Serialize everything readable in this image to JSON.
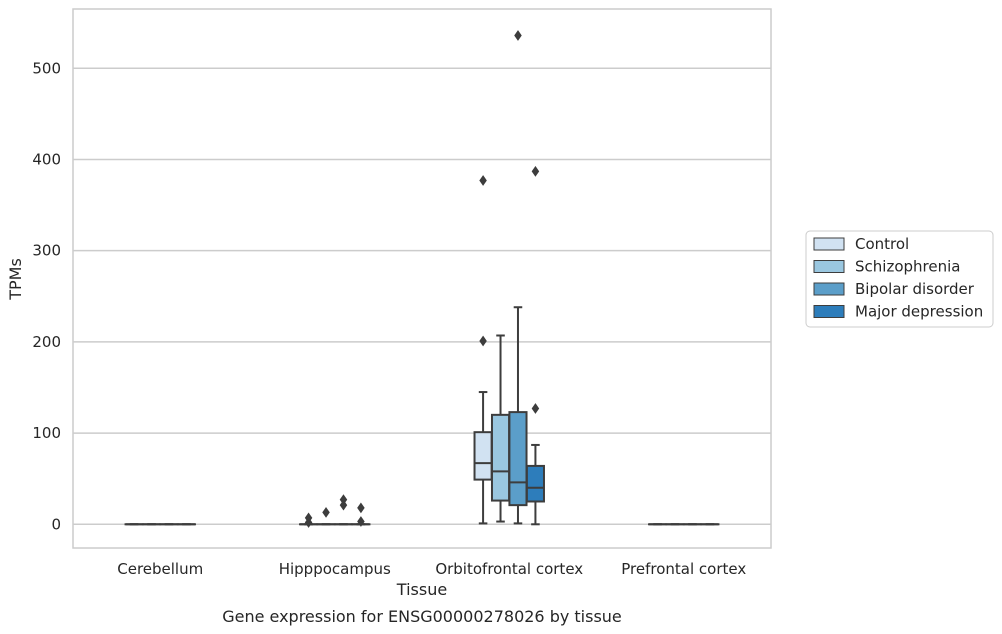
{
  "caption": "Gene expression for ENSG00000278026 by tissue",
  "chart_data": {
    "type": "boxplot",
    "xlabel": "Tissue",
    "ylabel": "TPMs",
    "ylim": [
      -26,
      565
    ],
    "yticks": [
      0,
      100,
      200,
      300,
      400,
      500
    ],
    "grid": "horizontal",
    "legend_position": "right",
    "categories": [
      "Cerebellum",
      "Hipppocampus",
      "Orbitofrontal cortex",
      "Prefrontal cortex"
    ],
    "series": [
      {
        "name": "Control",
        "color": "#d1e2f2",
        "boxes": [
          {
            "whisker_low": 0,
            "q1": 0,
            "median": 0,
            "q3": 0,
            "whisker_high": 0,
            "outliers": []
          },
          {
            "whisker_low": 0,
            "q1": 0,
            "median": 0,
            "q3": 0,
            "whisker_high": 0,
            "outliers": [
              2,
              7
            ]
          },
          {
            "whisker_low": 1,
            "q1": 49,
            "median": 67,
            "q3": 101,
            "whisker_high": 145,
            "outliers": [
              201,
              377
            ]
          },
          {
            "whisker_low": 0,
            "q1": 0,
            "median": 0,
            "q3": 0,
            "whisker_high": 0,
            "outliers": []
          }
        ]
      },
      {
        "name": "Schizophrenia",
        "color": "#9ac7e0",
        "boxes": [
          {
            "whisker_low": 0,
            "q1": 0,
            "median": 0,
            "q3": 0,
            "whisker_high": 0,
            "outliers": []
          },
          {
            "whisker_low": 0,
            "q1": 0,
            "median": 0,
            "q3": 0,
            "whisker_high": 0,
            "outliers": [
              13
            ]
          },
          {
            "whisker_low": 3,
            "q1": 26,
            "median": 58,
            "q3": 120,
            "whisker_high": 207,
            "outliers": []
          },
          {
            "whisker_low": 0,
            "q1": 0,
            "median": 0,
            "q3": 0,
            "whisker_high": 0,
            "outliers": []
          }
        ]
      },
      {
        "name": "Bipolar disorder",
        "color": "#5b9ec9",
        "boxes": [
          {
            "whisker_low": 0,
            "q1": 0,
            "median": 0,
            "q3": 0,
            "whisker_high": 0,
            "outliers": []
          },
          {
            "whisker_low": 0,
            "q1": 0,
            "median": 0,
            "q3": 0,
            "whisker_high": 0,
            "outliers": [
              21,
              27
            ]
          },
          {
            "whisker_low": 1,
            "q1": 21,
            "median": 46,
            "q3": 123,
            "whisker_high": 238,
            "outliers": [
              536
            ]
          },
          {
            "whisker_low": 0,
            "q1": 0,
            "median": 0,
            "q3": 0,
            "whisker_high": 0,
            "outliers": []
          }
        ]
      },
      {
        "name": "Major depression",
        "color": "#2d7dbb",
        "boxes": [
          {
            "whisker_low": 0,
            "q1": 0,
            "median": 0,
            "q3": 0,
            "whisker_high": 0,
            "outliers": []
          },
          {
            "whisker_low": 0,
            "q1": 0,
            "median": 0,
            "q3": 0,
            "whisker_high": 0,
            "outliers": [
              3,
              18
            ]
          },
          {
            "whisker_low": 0,
            "q1": 25,
            "median": 40,
            "q3": 64,
            "whisker_high": 87,
            "outliers": [
              127,
              387
            ]
          },
          {
            "whisker_low": 0,
            "q1": 0,
            "median": 0,
            "q3": 0,
            "whisker_high": 0,
            "outliers": []
          }
        ]
      }
    ]
  }
}
